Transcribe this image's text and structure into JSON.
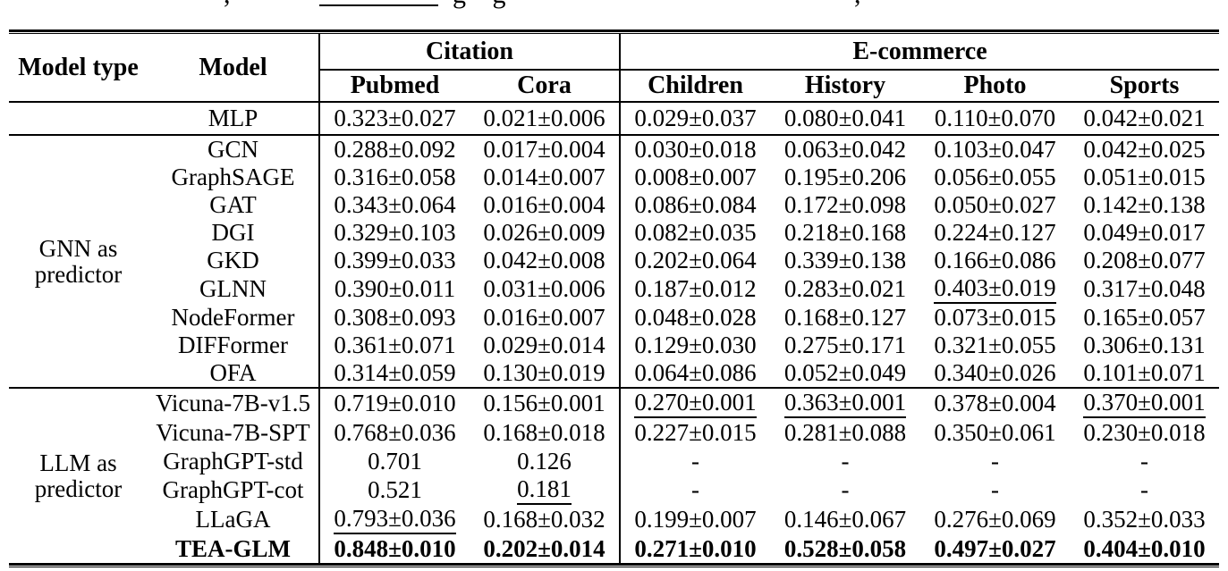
{
  "caption_fragments": {
    "left_comma": ",",
    "letters": "g g",
    "right_comma": ","
  },
  "table": {
    "header": {
      "model_type": "Model type",
      "model": "Model"
    },
    "col_groups": [
      {
        "label": "Citation",
        "cols": [
          "Pubmed",
          "Cora"
        ]
      },
      {
        "label": "E-commerce",
        "cols": [
          "Children",
          "History",
          "Photo",
          "Sports"
        ]
      }
    ],
    "sections": [
      {
        "label_lines": [],
        "rows": [
          {
            "model": "MLP",
            "bold": false,
            "cells": [
              {
                "t": "0.323±0.027",
                "s": "n"
              },
              {
                "t": "0.021±0.006",
                "s": "n"
              },
              {
                "t": "0.029±0.037",
                "s": "n"
              },
              {
                "t": "0.080±0.041",
                "s": "n"
              },
              {
                "t": "0.110±0.070",
                "s": "n"
              },
              {
                "t": "0.042±0.021",
                "s": "n"
              }
            ]
          }
        ]
      },
      {
        "label_lines": [
          "GNN as",
          "predictor"
        ],
        "rows": [
          {
            "model": "GCN",
            "bold": false,
            "cells": [
              {
                "t": "0.288±0.092",
                "s": "n"
              },
              {
                "t": "0.017±0.004",
                "s": "n"
              },
              {
                "t": "0.030±0.018",
                "s": "n"
              },
              {
                "t": "0.063±0.042",
                "s": "n"
              },
              {
                "t": "0.103±0.047",
                "s": "n"
              },
              {
                "t": "0.042±0.025",
                "s": "n"
              }
            ]
          },
          {
            "model": "GraphSAGE",
            "bold": false,
            "cells": [
              {
                "t": "0.316±0.058",
                "s": "n"
              },
              {
                "t": "0.014±0.007",
                "s": "n"
              },
              {
                "t": "0.008±0.007",
                "s": "n"
              },
              {
                "t": "0.195±0.206",
                "s": "n"
              },
              {
                "t": "0.056±0.055",
                "s": "n"
              },
              {
                "t": "0.051±0.015",
                "s": "n"
              }
            ]
          },
          {
            "model": "GAT",
            "bold": false,
            "cells": [
              {
                "t": "0.343±0.064",
                "s": "n"
              },
              {
                "t": "0.016±0.004",
                "s": "n"
              },
              {
                "t": "0.086±0.084",
                "s": "n"
              },
              {
                "t": "0.172±0.098",
                "s": "n"
              },
              {
                "t": "0.050±0.027",
                "s": "n"
              },
              {
                "t": "0.142±0.138",
                "s": "n"
              }
            ]
          },
          {
            "model": "DGI",
            "bold": false,
            "cells": [
              {
                "t": "0.329±0.103",
                "s": "n"
              },
              {
                "t": "0.026±0.009",
                "s": "n"
              },
              {
                "t": "0.082±0.035",
                "s": "n"
              },
              {
                "t": "0.218±0.168",
                "s": "n"
              },
              {
                "t": "0.224±0.127",
                "s": "n"
              },
              {
                "t": "0.049±0.017",
                "s": "n"
              }
            ]
          },
          {
            "model": "GKD",
            "bold": false,
            "cells": [
              {
                "t": "0.399±0.033",
                "s": "n"
              },
              {
                "t": "0.042±0.008",
                "s": "n"
              },
              {
                "t": "0.202±0.064",
                "s": "n"
              },
              {
                "t": "0.339±0.138",
                "s": "n"
              },
              {
                "t": "0.166±0.086",
                "s": "n"
              },
              {
                "t": "0.208±0.077",
                "s": "n"
              }
            ]
          },
          {
            "model": "GLNN",
            "bold": false,
            "cells": [
              {
                "t": "0.390±0.011",
                "s": "n"
              },
              {
                "t": "0.031±0.006",
                "s": "n"
              },
              {
                "t": "0.187±0.012",
                "s": "n"
              },
              {
                "t": "0.283±0.021",
                "s": "n"
              },
              {
                "t": "0.403±0.019",
                "s": "u"
              },
              {
                "t": "0.317±0.048",
                "s": "n"
              }
            ]
          },
          {
            "model": "NodeFormer",
            "bold": false,
            "cells": [
              {
                "t": "0.308±0.093",
                "s": "n"
              },
              {
                "t": "0.016±0.007",
                "s": "n"
              },
              {
                "t": "0.048±0.028",
                "s": "n"
              },
              {
                "t": "0.168±0.127",
                "s": "n"
              },
              {
                "t": "0.073±0.015",
                "s": "n"
              },
              {
                "t": "0.165±0.057",
                "s": "n"
              }
            ]
          },
          {
            "model": "DIFFormer",
            "bold": false,
            "cells": [
              {
                "t": "0.361±0.071",
                "s": "n"
              },
              {
                "t": "0.029±0.014",
                "s": "n"
              },
              {
                "t": "0.129±0.030",
                "s": "n"
              },
              {
                "t": "0.275±0.171",
                "s": "n"
              },
              {
                "t": "0.321±0.055",
                "s": "n"
              },
              {
                "t": "0.306±0.131",
                "s": "n"
              }
            ]
          },
          {
            "model": "OFA",
            "bold": false,
            "cells": [
              {
                "t": "0.314±0.059",
                "s": "n"
              },
              {
                "t": "0.130±0.019",
                "s": "n"
              },
              {
                "t": "0.064±0.086",
                "s": "n"
              },
              {
                "t": "0.052±0.049",
                "s": "n"
              },
              {
                "t": "0.340±0.026",
                "s": "n"
              },
              {
                "t": "0.101±0.071",
                "s": "n"
              }
            ]
          }
        ]
      },
      {
        "label_lines": [
          "LLM as",
          "predictor"
        ],
        "rows": [
          {
            "model": "Vicuna-7B-v1.5",
            "bold": false,
            "cells": [
              {
                "t": "0.719±0.010",
                "s": "n"
              },
              {
                "t": "0.156±0.001",
                "s": "n"
              },
              {
                "t": "0.270±0.001",
                "s": "u"
              },
              {
                "t": "0.363±0.001",
                "s": "u"
              },
              {
                "t": "0.378±0.004",
                "s": "n"
              },
              {
                "t": "0.370±0.001",
                "s": "u"
              }
            ]
          },
          {
            "model": "Vicuna-7B-SPT",
            "bold": false,
            "cells": [
              {
                "t": "0.768±0.036",
                "s": "n"
              },
              {
                "t": "0.168±0.018",
                "s": "n"
              },
              {
                "t": "0.227±0.015",
                "s": "n"
              },
              {
                "t": "0.281±0.088",
                "s": "n"
              },
              {
                "t": "0.350±0.061",
                "s": "n"
              },
              {
                "t": "0.230±0.018",
                "s": "n"
              }
            ]
          },
          {
            "model": "GraphGPT-std",
            "bold": false,
            "cells": [
              {
                "t": "0.701",
                "s": "n"
              },
              {
                "t": "0.126",
                "s": "n"
              },
              {
                "t": "-",
                "s": "n"
              },
              {
                "t": "-",
                "s": "n"
              },
              {
                "t": "-",
                "s": "n"
              },
              {
                "t": "-",
                "s": "n"
              }
            ]
          },
          {
            "model": "GraphGPT-cot",
            "bold": false,
            "cells": [
              {
                "t": "0.521",
                "s": "n"
              },
              {
                "t": "0.181",
                "s": "u"
              },
              {
                "t": "-",
                "s": "n"
              },
              {
                "t": "-",
                "s": "n"
              },
              {
                "t": "-",
                "s": "n"
              },
              {
                "t": "-",
                "s": "n"
              }
            ]
          },
          {
            "model": "LLaGA",
            "bold": false,
            "cells": [
              {
                "t": "0.793±0.036",
                "s": "u"
              },
              {
                "t": "0.168±0.032",
                "s": "n"
              },
              {
                "t": "0.199±0.007",
                "s": "n"
              },
              {
                "t": "0.146±0.067",
                "s": "n"
              },
              {
                "t": "0.276±0.069",
                "s": "n"
              },
              {
                "t": "0.352±0.033",
                "s": "n"
              }
            ]
          },
          {
            "model": "TEA-GLM",
            "bold": true,
            "cells": [
              {
                "t": "0.848±0.010",
                "s": "b"
              },
              {
                "t": "0.202±0.014",
                "s": "b"
              },
              {
                "t": "0.271±0.010",
                "s": "b"
              },
              {
                "t": "0.528±0.058",
                "s": "b"
              },
              {
                "t": "0.497±0.027",
                "s": "b"
              },
              {
                "t": "0.404±0.010",
                "s": "b"
              }
            ]
          }
        ]
      }
    ]
  }
}
